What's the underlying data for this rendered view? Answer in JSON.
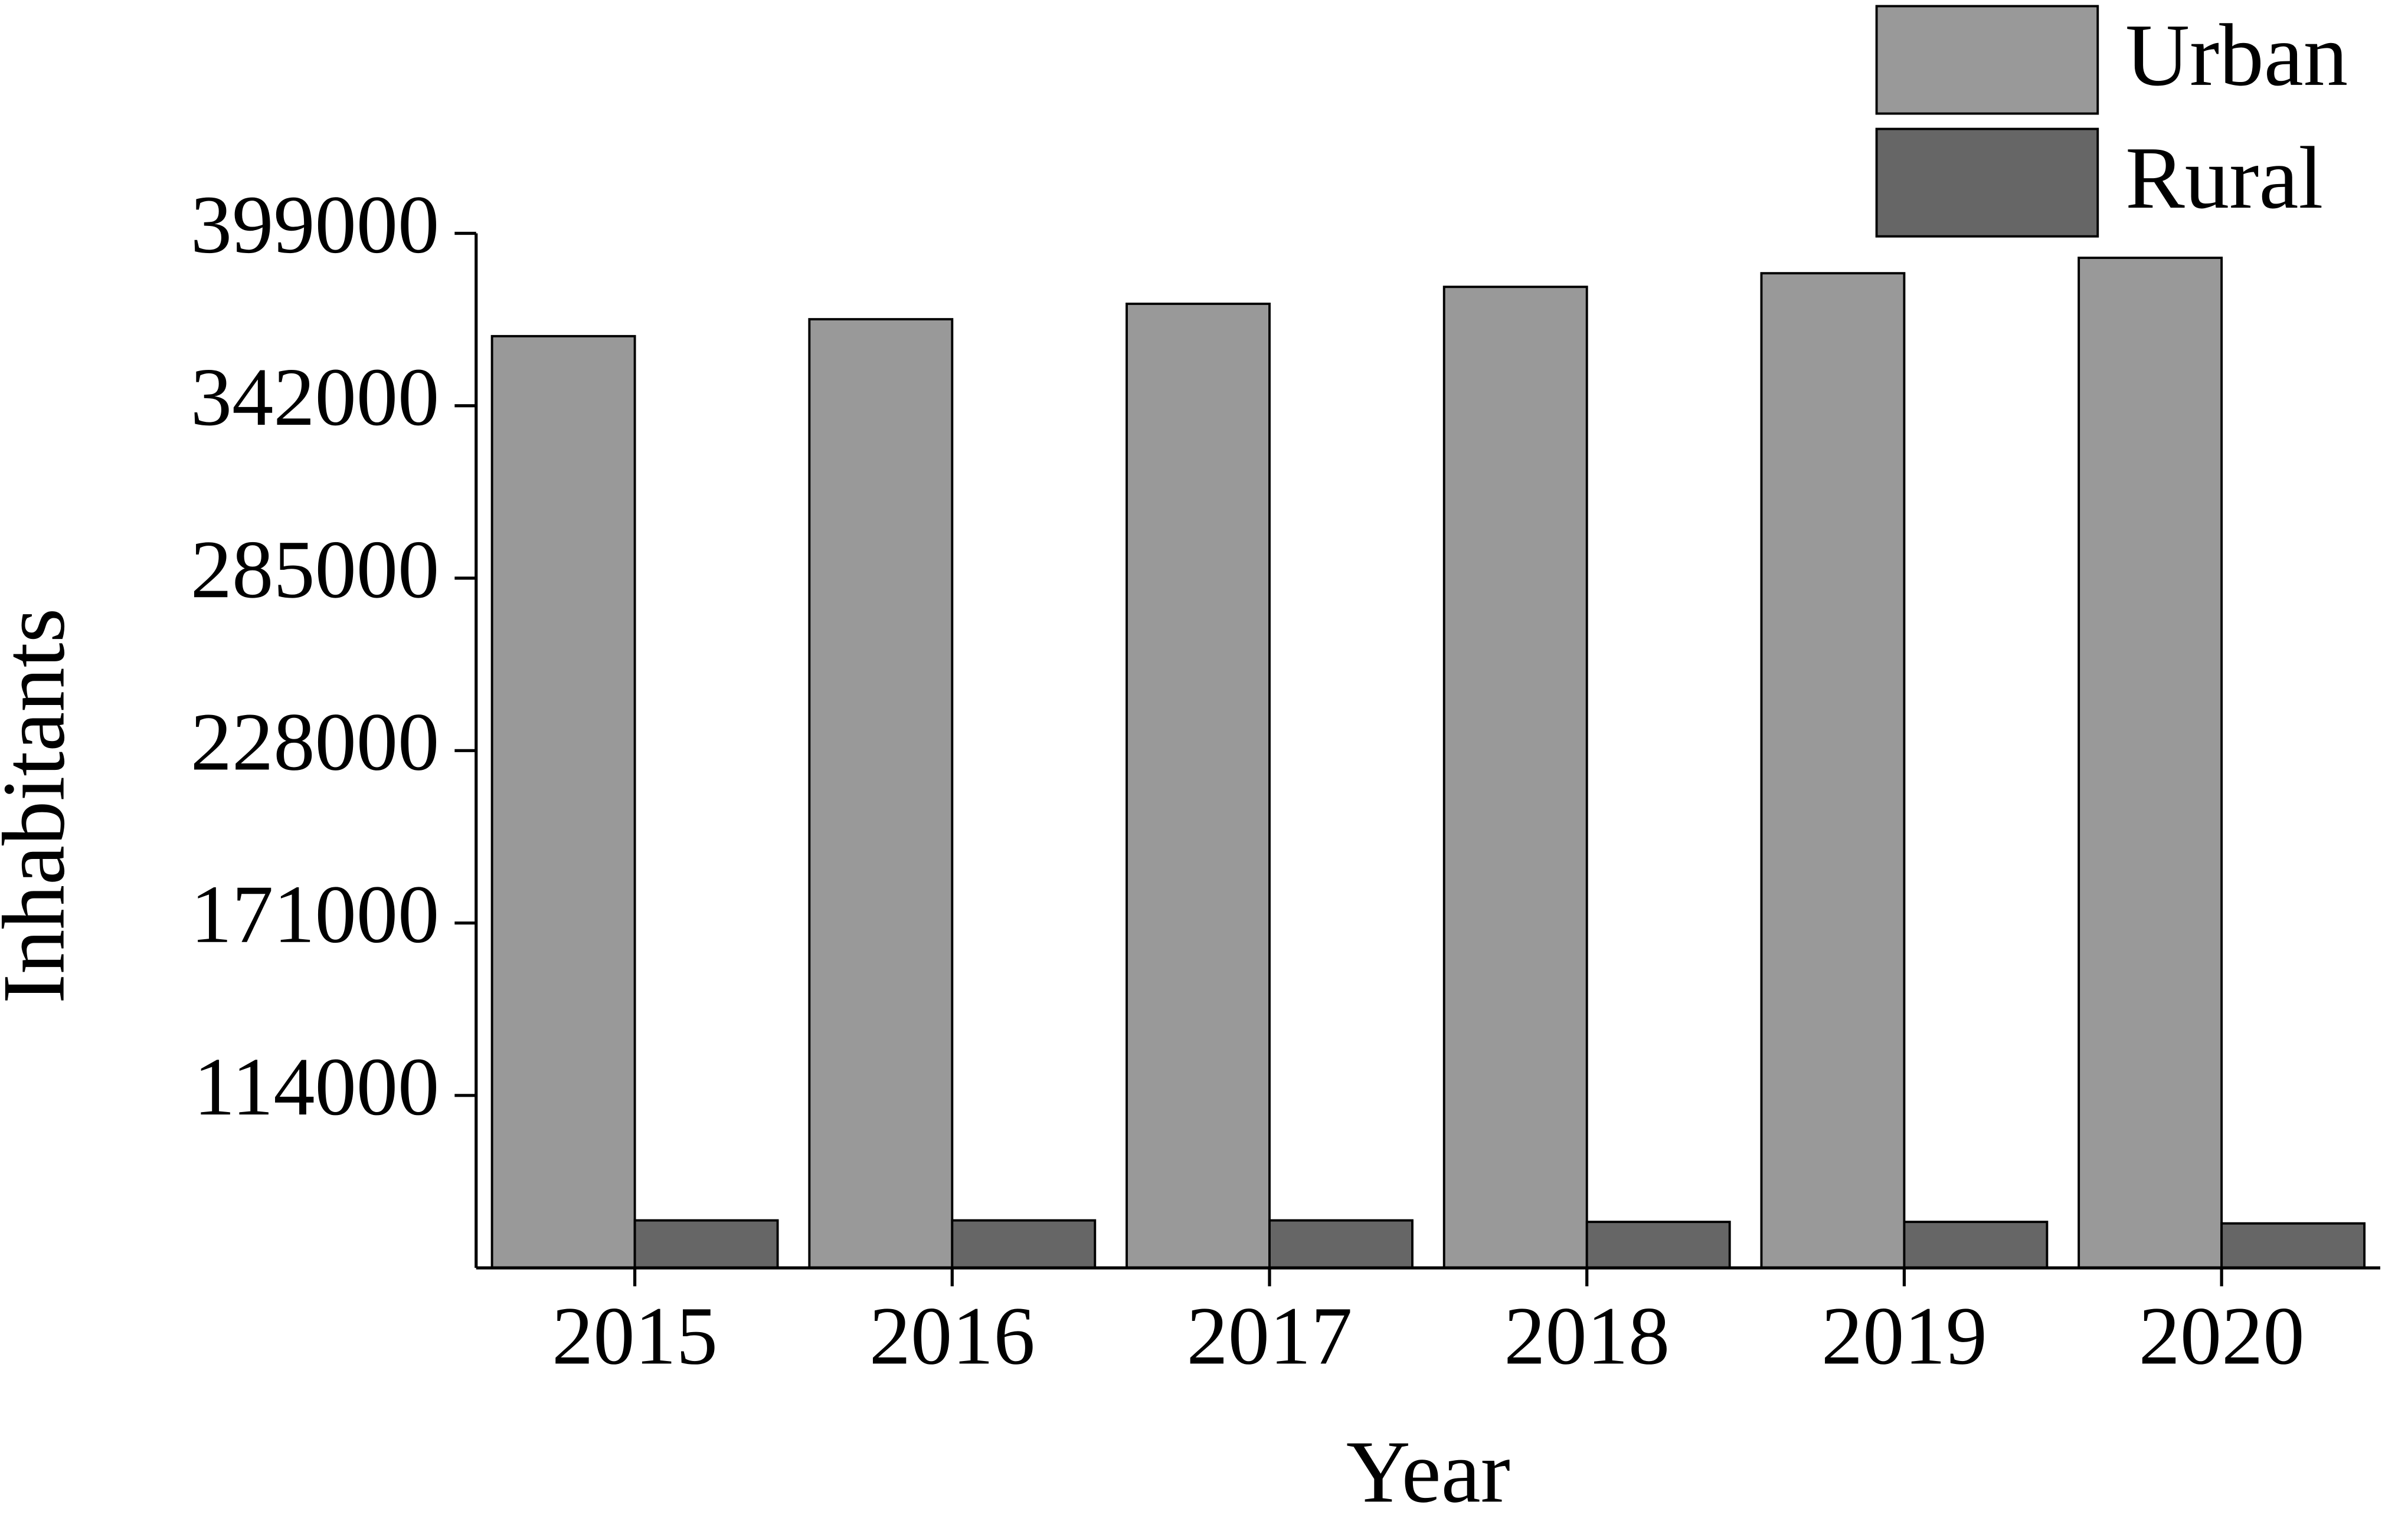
{
  "chart_data": {
    "type": "bar",
    "x_label": "Year",
    "y_label": "Inhabitants",
    "categories": [
      "2015",
      "2016",
      "2017",
      "2018",
      "2019",
      "2020"
    ],
    "series": [
      {
        "name": "Urban",
        "color": "#999999",
        "values": [
          365000,
          370600,
          375700,
          381300,
          385800,
          390900
        ]
      },
      {
        "name": "Rural",
        "color": "#666666",
        "values": [
          72700,
          72700,
          72700,
          72200,
          72200,
          71700
        ]
      }
    ],
    "ylim": [
      57000,
      399000
    ],
    "yticks": [
      114000,
      171000,
      228000,
      285000,
      342000,
      399000
    ],
    "legend": "top-right"
  }
}
